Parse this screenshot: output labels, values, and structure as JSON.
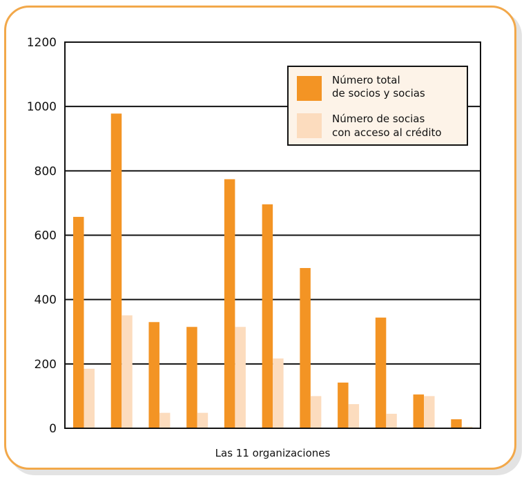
{
  "chart_data": {
    "type": "bar",
    "categories": [
      "",
      "",
      "",
      "",
      "",
      "",
      "",
      "",
      "",
      "",
      ""
    ],
    "xlabel": "Las 11 organizaciones",
    "ylabel": "",
    "ylim": [
      0,
      1200
    ],
    "yticks": [
      0,
      200,
      400,
      600,
      800,
      1000,
      1200
    ],
    "grid": true,
    "legend_position": "top-right",
    "series": [
      {
        "name": "Número total de socios y socias",
        "legend_lines": [
          "Número total",
          "de socios y socias"
        ],
        "color": "#f39424",
        "values": [
          657,
          978,
          330,
          315,
          774,
          696,
          498,
          142,
          344,
          105,
          28
        ]
      },
      {
        "name": "Número de socias con acceso al crédito",
        "legend_lines": [
          "Número de socias",
          "con acceso al crédito"
        ],
        "color": "#fcdcbe",
        "values": [
          185,
          351,
          48,
          48,
          315,
          217,
          100,
          75,
          45,
          100,
          5
        ]
      }
    ]
  },
  "colors": {
    "frame_border": "#f2a84a",
    "legend_background": "#fdf3e8"
  }
}
